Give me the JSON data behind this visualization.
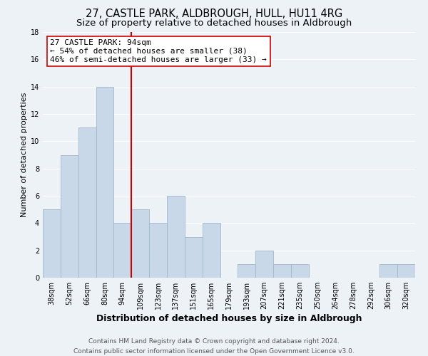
{
  "title": "27, CASTLE PARK, ALDBROUGH, HULL, HU11 4RG",
  "subtitle": "Size of property relative to detached houses in Aldbrough",
  "xlabel": "Distribution of detached houses by size in Aldbrough",
  "ylabel": "Number of detached properties",
  "bar_color": "#c8d8e8",
  "bar_edge_color": "#a0b8cc",
  "categories": [
    "38sqm",
    "52sqm",
    "66sqm",
    "80sqm",
    "94sqm",
    "109sqm",
    "123sqm",
    "137sqm",
    "151sqm",
    "165sqm",
    "179sqm",
    "193sqm",
    "207sqm",
    "221sqm",
    "235sqm",
    "250sqm",
    "264sqm",
    "278sqm",
    "292sqm",
    "306sqm",
    "320sqm"
  ],
  "values": [
    5,
    9,
    11,
    14,
    4,
    5,
    4,
    6,
    3,
    4,
    0,
    1,
    2,
    1,
    1,
    0,
    0,
    0,
    0,
    1,
    1
  ],
  "ylim": [
    0,
    18
  ],
  "yticks": [
    0,
    2,
    4,
    6,
    8,
    10,
    12,
    14,
    16,
    18
  ],
  "highlight_index": 4,
  "vline_color": "#cc0000",
  "annotation_text": "27 CASTLE PARK: 94sqm\n← 54% of detached houses are smaller (38)\n46% of semi-detached houses are larger (33) →",
  "annotation_box_color": "#ffffff",
  "annotation_box_edge": "#cc0000",
  "footer_line1": "Contains HM Land Registry data © Crown copyright and database right 2024.",
  "footer_line2": "Contains public sector information licensed under the Open Government Licence v3.0.",
  "background_color": "#edf2f7",
  "grid_color": "#ffffff",
  "title_fontsize": 10.5,
  "subtitle_fontsize": 9.5,
  "xlabel_fontsize": 9,
  "ylabel_fontsize": 8,
  "tick_fontsize": 7,
  "annotation_fontsize": 8,
  "footer_fontsize": 6.5
}
